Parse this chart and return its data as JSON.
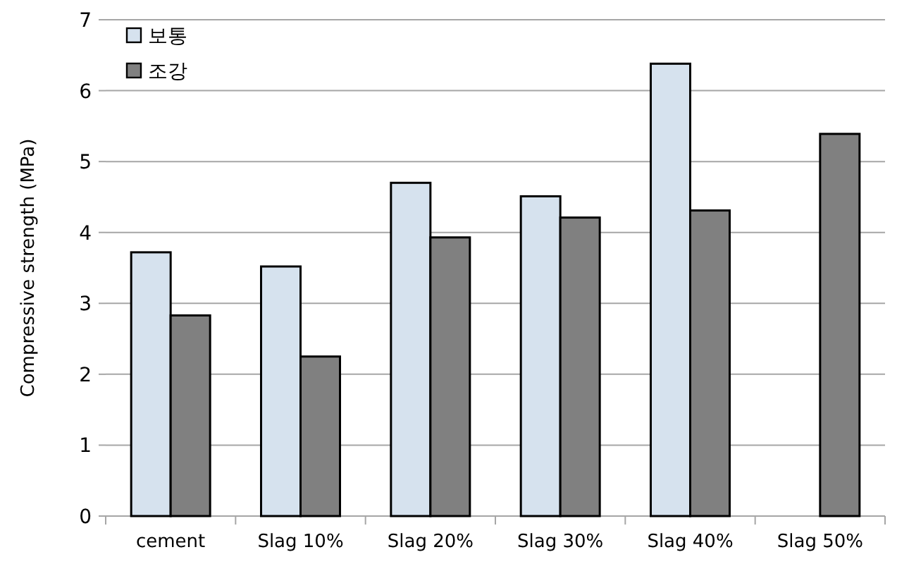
{
  "chart_data": {
    "type": "bar",
    "ylabel": "Compressive strength (MPa)",
    "categories": [
      "cement",
      "Slag 10%",
      "Slag 20%",
      "Slag 30%",
      "Slag 40%",
      "Slag 50%"
    ],
    "series": [
      {
        "name": "보통",
        "color": "#d6e2ee",
        "values": [
          3.72,
          3.52,
          4.7,
          4.51,
          6.38,
          null
        ]
      },
      {
        "name": "조강",
        "color": "#808080",
        "values": [
          2.83,
          2.25,
          3.93,
          4.21,
          4.31,
          5.39
        ]
      }
    ],
    "ylim": [
      0,
      7
    ],
    "yticks": [
      0,
      1,
      2,
      3,
      4,
      5,
      6,
      7
    ],
    "grid": "y",
    "legend": "top left"
  }
}
